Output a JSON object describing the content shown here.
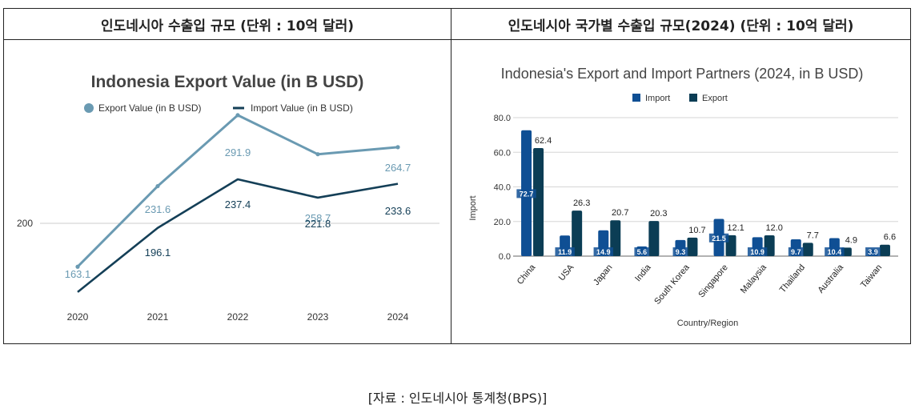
{
  "panels": {
    "left_header": "인도네시아 수출입 규모 (단위 : 10억 달러)",
    "right_header": "인도네시아 국가별 수출입 규모(2024) (단위 : 10억 달러)"
  },
  "source": "[자료 : 인도네시아 통계청(BPS)]",
  "colors": {
    "export_line": "#6a9ab2",
    "import_line": "#143f57",
    "import_bar": "#0f4f94",
    "export_bar": "#0b3d55"
  },
  "chart_data": [
    {
      "type": "line",
      "title": "Indonesia Export Value (in B USD)",
      "x": [
        "2020",
        "2021",
        "2022",
        "2023",
        "2024"
      ],
      "series": [
        {
          "name": "Export Value (in B USD)",
          "values": [
            163.1,
            231.6,
            291.9,
            258.7,
            264.7
          ]
        },
        {
          "name": "Import Value (in B USD)",
          "values": [
            141.6,
            196.1,
            237.4,
            221.8,
            233.6
          ]
        }
      ],
      "data_labels": {
        "Export Value (in B USD)": [
          "163.1",
          "231.6",
          "291.9",
          "258.7",
          "264.7"
        ],
        "Import Value (in B USD)": [
          "",
          "196.1",
          "237.4",
          "221.8",
          "233.6"
        ]
      },
      "ytick_labels": [
        "200"
      ],
      "legend_position": "top"
    },
    {
      "type": "bar",
      "title": "Indonesia's Export and Import Partners (2024, in B USD)",
      "xlabel": "Country/Region",
      "ylabel": "Import",
      "ylim": [
        0,
        80
      ],
      "yticks": [
        "0.0",
        "20.0",
        "40.0",
        "60.0",
        "80.0"
      ],
      "categories": [
        "China",
        "USA",
        "Japan",
        "India",
        "South Korea",
        "Singapore",
        "Malaysia",
        "Thailand",
        "Australia",
        "Taiwan"
      ],
      "series": [
        {
          "name": "Import",
          "values": [
            72.7,
            11.9,
            14.9,
            5.6,
            9.3,
            21.5,
            10.9,
            9.7,
            10.4,
            3.9
          ]
        },
        {
          "name": "Export",
          "values": [
            62.4,
            26.3,
            20.7,
            20.3,
            10.7,
            12.1,
            12.0,
            7.7,
            4.9,
            6.6
          ]
        }
      ],
      "import_labels": [
        "72.7",
        "11.9",
        "14.9",
        "5.6",
        "9.3",
        "21.5",
        "10.9",
        "9.7",
        "10.4",
        "3.9"
      ],
      "export_labels": [
        "62.4",
        "26.3",
        "20.7",
        "20.3",
        "10.7",
        "12.1",
        "12.0",
        "7.7",
        "4.9",
        "6.6"
      ],
      "legend_position": "top"
    }
  ]
}
